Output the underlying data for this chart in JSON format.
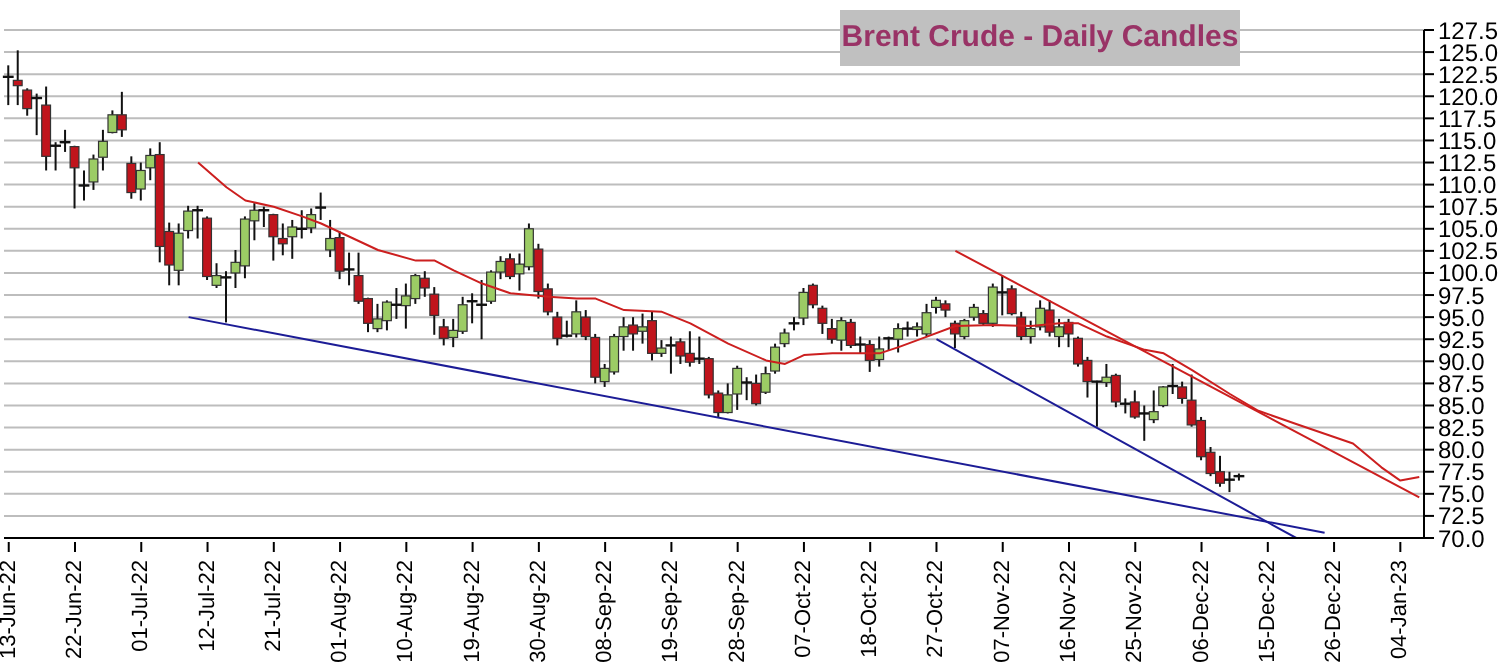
{
  "chart_data": {
    "type": "candlestick",
    "title": "Brent Crude - Daily Candles",
    "categories": [
      "13-Jun-22",
      null,
      null,
      null,
      null,
      null,
      null,
      "22-Jun-22",
      null,
      null,
      null,
      null,
      null,
      null,
      "01-Jul-22",
      null,
      null,
      null,
      null,
      null,
      null,
      "12-Jul-22",
      null,
      null,
      null,
      null,
      null,
      null,
      "21-Jul-22",
      null,
      null,
      null,
      null,
      null,
      null,
      "01-Aug-22",
      null,
      null,
      null,
      null,
      null,
      null,
      "10-Aug-22",
      null,
      null,
      null,
      null,
      null,
      null,
      "19-Aug-22",
      null,
      null,
      null,
      null,
      null,
      null,
      "30-Aug-22",
      null,
      null,
      null,
      null,
      null,
      null,
      "08-Sep-22",
      null,
      null,
      null,
      null,
      null,
      null,
      "19-Sep-22",
      null,
      null,
      null,
      null,
      null,
      null,
      "28-Sep-22",
      null,
      null,
      null,
      null,
      null,
      null,
      "07-Oct-22",
      null,
      null,
      null,
      null,
      null,
      null,
      "18-Oct-22",
      null,
      null,
      null,
      null,
      null,
      null,
      "27-Oct-22",
      null,
      null,
      null,
      null,
      null,
      null,
      "07-Nov-22",
      null,
      null,
      null,
      null,
      null,
      null,
      "16-Nov-22",
      null,
      null,
      null,
      null,
      null,
      null,
      "25-Nov-22",
      null,
      null,
      null,
      null,
      null,
      null,
      "06-Dec-22",
      null,
      null,
      null,
      null,
      null,
      null,
      "15-Dec-22",
      null,
      null,
      null,
      null,
      null,
      null,
      "26-Dec-22",
      null,
      null,
      null,
      null,
      null,
      null,
      "04-Jan-23",
      null,
      null
    ],
    "ohlc": [
      [
        122.2,
        123.5,
        119.0,
        122.0
      ],
      [
        121.8,
        125.2,
        119.0,
        121.2
      ],
      [
        120.7,
        120.9,
        117.8,
        118.6
      ],
      [
        119.8,
        120.3,
        115.6,
        119.7
      ],
      [
        119.0,
        121.1,
        111.6,
        113.2
      ],
      [
        114.3,
        114.8,
        111.6,
        114.4
      ],
      [
        114.6,
        116.2,
        113.7,
        114.8
      ],
      [
        114.3,
        114.4,
        107.3,
        111.9
      ],
      [
        109.9,
        111.6,
        108.2,
        109.8
      ],
      [
        110.3,
        113.4,
        109.4,
        112.9
      ],
      [
        113.1,
        116.2,
        111.6,
        114.9
      ],
      [
        115.9,
        118.4,
        115.8,
        117.9
      ],
      [
        117.9,
        120.5,
        115.4,
        116.2
      ],
      [
        112.4,
        113.2,
        108.4,
        109.1
      ],
      [
        109.5,
        112.5,
        108.2,
        111.6
      ],
      [
        111.9,
        114.1,
        110.5,
        113.3
      ],
      [
        113.4,
        114.8,
        101.2,
        103.0
      ],
      [
        104.7,
        105.7,
        98.6,
        100.9
      ],
      [
        100.3,
        105.6,
        98.6,
        104.5
      ],
      [
        104.8,
        107.6,
        103.9,
        107.0
      ],
      [
        107.0,
        107.6,
        103.9,
        107.1
      ],
      [
        106.2,
        106.4,
        99.2,
        99.6
      ],
      [
        98.6,
        101.1,
        98.3,
        99.7
      ],
      [
        99.4,
        100.2,
        94.4,
        99.5
      ],
      [
        100.0,
        102.6,
        98.3,
        101.2
      ],
      [
        100.8,
        106.4,
        99.4,
        106.1
      ],
      [
        105.9,
        107.9,
        103.7,
        107.1
      ],
      [
        107.0,
        107.5,
        105.2,
        107.1
      ],
      [
        106.6,
        106.7,
        101.4,
        104.1
      ],
      [
        103.9,
        105.6,
        102.0,
        103.3
      ],
      [
        104.1,
        106.0,
        101.6,
        105.2
      ],
      [
        104.8,
        107.1,
        103.9,
        105.0
      ],
      [
        105.1,
        107.3,
        104.5,
        106.6
      ],
      [
        107.3,
        109.1,
        106.0,
        107.4
      ],
      [
        102.6,
        106.0,
        101.8,
        103.9
      ],
      [
        104.0,
        104.7,
        99.3,
        100.2
      ],
      [
        100.4,
        102.3,
        98.6,
        100.2
      ],
      [
        99.7,
        102.3,
        96.5,
        96.8
      ],
      [
        97.1,
        97.2,
        93.3,
        94.3
      ],
      [
        93.7,
        96.5,
        93.3,
        94.8
      ],
      [
        94.6,
        96.9,
        93.5,
        96.7
      ],
      [
        96.3,
        98.3,
        94.8,
        96.4
      ],
      [
        96.3,
        98.8,
        93.7,
        97.4
      ],
      [
        97.1,
        99.9,
        96.5,
        99.7
      ],
      [
        99.4,
        100.2,
        97.3,
        98.3
      ],
      [
        97.6,
        98.4,
        93.0,
        95.2
      ],
      [
        93.9,
        94.8,
        91.8,
        92.6
      ],
      [
        92.7,
        94.8,
        91.6,
        93.5
      ],
      [
        93.4,
        97.3,
        93.1,
        96.4
      ],
      [
        96.6,
        97.7,
        94.3,
        96.8
      ],
      [
        96.4,
        99.2,
        92.5,
        96.3
      ],
      [
        96.8,
        100.3,
        96.5,
        100.1
      ],
      [
        100.1,
        101.9,
        99.3,
        101.3
      ],
      [
        101.6,
        102.2,
        99.3,
        99.6
      ],
      [
        99.9,
        102.2,
        98.0,
        101.0
      ],
      [
        100.7,
        105.6,
        100.3,
        105.0
      ],
      [
        102.7,
        103.3,
        97.1,
        97.9
      ],
      [
        98.2,
        98.8,
        95.2,
        95.6
      ],
      [
        95.0,
        95.6,
        91.8,
        92.6
      ],
      [
        92.9,
        94.6,
        92.7,
        92.8
      ],
      [
        93.1,
        96.9,
        92.7,
        95.6
      ],
      [
        95.0,
        95.8,
        92.4,
        92.8
      ],
      [
        92.7,
        93.1,
        87.5,
        88.2
      ],
      [
        87.7,
        89.7,
        87.1,
        89.2
      ],
      [
        88.8,
        93.1,
        88.5,
        92.8
      ],
      [
        92.8,
        95.0,
        91.2,
        93.9
      ],
      [
        94.1,
        95.0,
        91.2,
        93.1
      ],
      [
        93.4,
        95.4,
        92.0,
        93.9
      ],
      [
        94.6,
        95.6,
        90.1,
        90.9
      ],
      [
        90.9,
        92.4,
        90.5,
        91.5
      ],
      [
        91.8,
        92.8,
        88.6,
        91.7
      ],
      [
        92.2,
        92.6,
        89.7,
        90.6
      ],
      [
        90.9,
        93.4,
        89.4,
        89.9
      ],
      [
        90.3,
        92.8,
        89.7,
        90.2
      ],
      [
        90.3,
        90.5,
        85.8,
        86.2
      ],
      [
        86.4,
        86.7,
        83.7,
        84.2
      ],
      [
        84.2,
        87.5,
        84.1,
        86.2
      ],
      [
        86.3,
        89.5,
        84.5,
        89.2
      ],
      [
        87.5,
        88.2,
        85.6,
        87.6
      ],
      [
        87.5,
        88.5,
        85.0,
        85.2
      ],
      [
        86.5,
        89.4,
        86.3,
        88.6
      ],
      [
        88.9,
        92.0,
        88.6,
        91.6
      ],
      [
        92.0,
        93.7,
        91.6,
        93.2
      ],
      [
        94.1,
        95.0,
        93.5,
        94.3
      ],
      [
        94.9,
        98.3,
        94.1,
        97.8
      ],
      [
        98.6,
        98.8,
        96.0,
        96.4
      ],
      [
        96.0,
        96.3,
        93.1,
        94.3
      ],
      [
        93.7,
        94.8,
        92.0,
        92.5
      ],
      [
        92.4,
        95.0,
        91.2,
        94.6
      ],
      [
        94.4,
        94.8,
        91.5,
        91.8
      ],
      [
        91.9,
        92.8,
        90.9,
        91.7
      ],
      [
        91.9,
        92.4,
        88.8,
        90.1
      ],
      [
        90.2,
        92.8,
        89.4,
        91.4
      ],
      [
        92.4,
        92.8,
        91.2,
        92.6
      ],
      [
        92.5,
        94.3,
        91.0,
        93.7
      ],
      [
        93.6,
        94.5,
        92.8,
        93.7
      ],
      [
        93.6,
        94.4,
        92.8,
        93.9
      ],
      [
        93.1,
        96.5,
        92.8,
        95.5
      ],
      [
        96.1,
        97.3,
        95.4,
        96.9
      ],
      [
        96.5,
        96.9,
        95.0,
        95.8
      ],
      [
        94.3,
        94.6,
        91.5,
        93.1
      ],
      [
        92.8,
        94.8,
        92.5,
        94.6
      ],
      [
        95.0,
        96.5,
        94.6,
        96.1
      ],
      [
        95.4,
        95.8,
        94.0,
        94.3
      ],
      [
        94.3,
        98.8,
        93.9,
        98.4
      ],
      [
        97.6,
        99.7,
        95.2,
        97.8
      ],
      [
        98.2,
        98.6,
        95.2,
        95.4
      ],
      [
        95.0,
        95.6,
        92.4,
        92.8
      ],
      [
        92.8,
        94.6,
        92.0,
        93.7
      ],
      [
        93.9,
        96.9,
        93.5,
        96.0
      ],
      [
        95.8,
        96.9,
        92.8,
        93.3
      ],
      [
        92.8,
        94.8,
        91.6,
        93.9
      ],
      [
        94.4,
        94.8,
        91.6,
        93.1
      ],
      [
        92.6,
        92.8,
        89.4,
        89.7
      ],
      [
        90.1,
        90.5,
        85.9,
        87.7
      ],
      [
        87.7,
        87.8,
        82.6,
        87.5
      ],
      [
        87.6,
        89.7,
        87.1,
        88.2
      ],
      [
        88.4,
        88.6,
        84.8,
        85.4
      ],
      [
        85.2,
        85.8,
        84.1,
        85.1
      ],
      [
        85.4,
        86.7,
        83.5,
        83.7
      ],
      [
        84.1,
        85.0,
        81.0,
        84.0
      ],
      [
        83.4,
        86.7,
        83.0,
        84.3
      ],
      [
        85.0,
        87.2,
        84.8,
        87.1
      ],
      [
        87.2,
        89.7,
        86.3,
        87.0
      ],
      [
        87.1,
        87.7,
        85.2,
        85.8
      ],
      [
        85.6,
        88.5,
        82.6,
        82.8
      ],
      [
        83.3,
        83.7,
        78.8,
        79.2
      ],
      [
        79.7,
        80.3,
        77.0,
        77.3
      ],
      [
        77.5,
        79.3,
        75.8,
        76.2
      ],
      [
        76.6,
        77.5,
        75.2,
        76.5
      ],
      [
        76.9,
        77.3,
        76.5,
        77.0
      ],
      null,
      null,
      null,
      null,
      null,
      null,
      null,
      null,
      null,
      null,
      null,
      null,
      null,
      null,
      null,
      null,
      null,
      null,
      null
    ],
    "series": [
      {
        "type": "line",
        "color": "#cc1f1f",
        "values": [
          null,
          null,
          null,
          null,
          null,
          null,
          null,
          null,
          null,
          null,
          null,
          null,
          null,
          null,
          null,
          null,
          null,
          null,
          null,
          null,
          112.5,
          null,
          null,
          109.7,
          null,
          108.2,
          null,
          null,
          107.5,
          null,
          null,
          106.4,
          null,
          105.6,
          null,
          null,
          104.1,
          null,
          null,
          102.6,
          null,
          null,
          null,
          101.4,
          null,
          101.4,
          null,
          100.3,
          null,
          null,
          98.8,
          null,
          null,
          97.7,
          null,
          null,
          null,
          97.3,
          null,
          null,
          97.1,
          null,
          97.1,
          null,
          null,
          95.8,
          null,
          null,
          null,
          95.6,
          null,
          null,
          94.3,
          null,
          null,
          null,
          92.0,
          null,
          null,
          null,
          90.1,
          null,
          89.7,
          null,
          90.7,
          null,
          null,
          90.9,
          null,
          null,
          90.9,
          null,
          90.9,
          null,
          91.6,
          null,
          null,
          92.8,
          null,
          null,
          94.0,
          null,
          null,
          null,
          94.1,
          null,
          null,
          null,
          94.0,
          null,
          null,
          94.3,
          null,
          94.3,
          null,
          null,
          92.8,
          null,
          null,
          null,
          91.3,
          null,
          90.9,
          null,
          null,
          89.0,
          null,
          null,
          null,
          86.3,
          null,
          null,
          84.4,
          null,
          null,
          null,
          82.9,
          null,
          null,
          81.8,
          null,
          null,
          80.7,
          null,
          null,
          78.0,
          null,
          76.5,
          null,
          76.9
        ]
      },
      {
        "type": "line",
        "color": "#cc1f1f",
        "values": [
          null,
          null,
          null,
          null,
          null,
          null,
          null,
          null,
          null,
          null,
          null,
          null,
          null,
          null,
          null,
          null,
          null,
          null,
          null,
          null,
          null,
          null,
          null,
          null,
          null,
          null,
          null,
          null,
          null,
          null,
          null,
          null,
          null,
          null,
          null,
          null,
          null,
          null,
          null,
          null,
          null,
          null,
          null,
          null,
          null,
          null,
          null,
          null,
          null,
          null,
          null,
          null,
          null,
          null,
          null,
          null,
          null,
          null,
          null,
          null,
          null,
          null,
          null,
          null,
          null,
          null,
          null,
          null,
          null,
          null,
          null,
          null,
          null,
          null,
          null,
          null,
          null,
          null,
          null,
          null,
          null,
          null,
          null,
          null,
          null,
          null,
          null,
          null,
          null,
          null,
          null,
          null,
          null,
          null,
          null,
          null,
          null,
          null,
          null,
          null,
          102.5,
          null,
          null,
          null,
          null,
          null,
          null,
          null,
          null,
          null,
          null,
          null,
          null,
          null,
          null,
          null,
          null,
          null,
          null,
          null,
          null,
          null,
          null,
          null,
          null,
          null,
          null,
          null,
          null,
          null,
          null,
          null,
          null,
          null,
          null,
          null,
          null,
          null,
          null,
          null,
          null,
          null,
          null,
          null,
          null,
          null,
          null,
          null,
          null,
          74.6
        ]
      },
      {
        "type": "line",
        "color": "#1c1c96",
        "values": [
          null,
          null,
          null,
          null,
          null,
          null,
          null,
          null,
          null,
          null,
          null,
          null,
          null,
          null,
          null,
          null,
          null,
          null,
          null,
          95.0,
          null,
          null,
          null,
          null,
          null,
          null,
          null,
          null,
          null,
          null,
          null,
          null,
          null,
          null,
          null,
          null,
          null,
          null,
          null,
          null,
          null,
          null,
          null,
          null,
          null,
          null,
          null,
          null,
          null,
          null,
          null,
          null,
          null,
          null,
          null,
          null,
          null,
          null,
          null,
          null,
          null,
          null,
          null,
          null,
          null,
          null,
          null,
          null,
          null,
          null,
          null,
          null,
          null,
          null,
          null,
          null,
          null,
          null,
          null,
          null,
          null,
          null,
          null,
          null,
          null,
          null,
          null,
          null,
          null,
          null,
          null,
          null,
          null,
          null,
          null,
          null,
          null,
          null,
          null,
          null,
          null,
          null,
          null,
          null,
          null,
          null,
          null,
          null,
          null,
          null,
          null,
          null,
          null,
          null,
          null,
          null,
          null,
          null,
          null,
          null,
          null,
          null,
          null,
          null,
          null,
          null,
          null,
          null,
          null,
          null,
          null,
          null,
          null,
          null,
          null,
          null,
          null,
          null,
          null,
          70.6,
          null,
          null,
          null,
          null,
          null,
          null,
          null,
          null,
          null,
          null
        ]
      },
      {
        "type": "line",
        "color": "#1c1c96",
        "values": [
          null,
          null,
          null,
          null,
          null,
          null,
          null,
          null,
          null,
          null,
          null,
          null,
          null,
          null,
          null,
          null,
          null,
          null,
          null,
          null,
          null,
          null,
          null,
          null,
          null,
          null,
          null,
          null,
          null,
          null,
          null,
          null,
          null,
          null,
          null,
          null,
          null,
          null,
          null,
          null,
          null,
          null,
          null,
          null,
          null,
          null,
          null,
          null,
          null,
          null,
          null,
          null,
          null,
          null,
          null,
          null,
          null,
          null,
          null,
          null,
          null,
          null,
          null,
          null,
          null,
          null,
          null,
          null,
          null,
          null,
          null,
          null,
          null,
          null,
          null,
          null,
          null,
          null,
          null,
          null,
          null,
          null,
          null,
          null,
          null,
          null,
          null,
          null,
          null,
          null,
          null,
          null,
          null,
          null,
          null,
          null,
          null,
          null,
          92.5,
          null,
          null,
          null,
          null,
          null,
          null,
          null,
          null,
          null,
          null,
          null,
          null,
          null,
          null,
          null,
          null,
          null,
          null,
          null,
          null,
          null,
          null,
          null,
          null,
          null,
          null,
          null,
          null,
          null,
          null,
          null,
          null,
          null,
          null,
          null,
          null,
          null,
          70.0,
          null,
          null,
          null,
          null,
          null,
          null,
          null,
          null,
          null,
          null,
          null,
          null,
          null
        ]
      }
    ],
    "ylim": [
      70,
      127.5
    ],
    "yticks": [
      {
        "value": 70,
        "label": "70.0"
      },
      72.5,
      {
        "value": 75,
        "label": "75.0"
      },
      77.5,
      {
        "value": 80,
        "label": "80.0"
      },
      82.5,
      {
        "value": 85,
        "label": "85.0"
      },
      87.5,
      {
        "value": 90,
        "label": "90.0"
      },
      92.5,
      {
        "value": 95,
        "label": "95.0"
      },
      97.5,
      {
        "value": 100,
        "label": "100.0"
      },
      102.5,
      {
        "value": 105,
        "label": "105.0"
      },
      107.5,
      {
        "value": 110,
        "label": "110.0"
      },
      112.5,
      {
        "value": 115,
        "label": "115.0"
      },
      117.5,
      {
        "value": 120,
        "label": "120.0"
      },
      122.5,
      {
        "value": 125,
        "label": "125.0"
      },
      127.5
    ],
    "grid": "y",
    "marker": "none"
  }
}
